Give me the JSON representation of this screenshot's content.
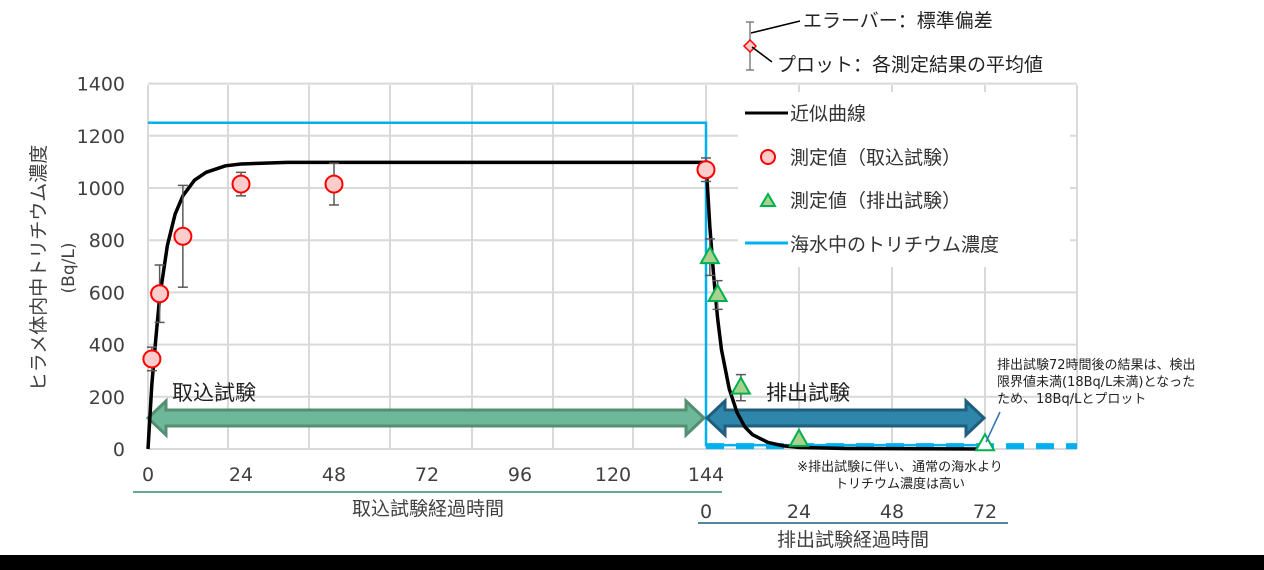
{
  "chart_data": {
    "type": "line",
    "title": "",
    "ylabel": "ヒラメ体内中トリチウム濃度",
    "ylabel_unit": "(Bq/L)",
    "ylim": [
      0,
      1400
    ],
    "yticks": [
      0,
      200,
      400,
      600,
      800,
      1000,
      1200,
      1400
    ],
    "x_axes": [
      {
        "label": "取込試験経過時間",
        "ticks": [
          0,
          24,
          48,
          72,
          96,
          120,
          144
        ],
        "range": [
          0,
          144
        ]
      },
      {
        "label": "排出試験経過時間",
        "ticks": [
          0,
          24,
          48,
          72
        ],
        "range": [
          0,
          72
        ],
        "offset_hours": 144
      }
    ],
    "grid": true,
    "legend_position": "upper right",
    "series": [
      {
        "name": "近似曲線",
        "kind": "line",
        "color": "#000000",
        "x": [
          0,
          1,
          2,
          3,
          5,
          7,
          9,
          12,
          15,
          20,
          24,
          36,
          48,
          96,
          144,
          145,
          146,
          147,
          148,
          150,
          152,
          154,
          156,
          160,
          164,
          168,
          180,
          216
        ],
        "y": [
          0,
          250,
          420,
          580,
          780,
          900,
          970,
          1030,
          1060,
          1085,
          1092,
          1098,
          1098,
          1098,
          1098,
          850,
          660,
          500,
          380,
          230,
          140,
          85,
          55,
          25,
          12,
          6,
          2,
          0
        ]
      },
      {
        "name": "測定値（取込試験）",
        "kind": "scatter",
        "marker": "circle",
        "color": "#ff0000",
        "fill": "#ffcccc",
        "x": [
          1,
          3,
          9,
          24,
          48,
          144
        ],
        "y": [
          345,
          595,
          815,
          1015,
          1015,
          1070
        ],
        "err": [
          45,
          110,
          195,
          45,
          80,
          45
        ]
      },
      {
        "name": "測定値（排出試験）",
        "kind": "scatter",
        "marker": "triangle",
        "color": "#00b050",
        "fill": "#a9d18e",
        "x": [
          145,
          147,
          153,
          168,
          216
        ],
        "y": [
          735,
          590,
          235,
          35,
          18
        ],
        "err": [
          70,
          55,
          50,
          10,
          0
        ]
      },
      {
        "name": "海水中のトリチウム濃度",
        "kind": "step",
        "color": "#00b0f0",
        "x": [
          0,
          144,
          144,
          216
        ],
        "y": [
          1250,
          1250,
          15,
          15
        ]
      }
    ],
    "annotations": [
      {
        "text": "エラーバー：標準偏差"
      },
      {
        "text": "プロット：各測定結果の平均値"
      },
      {
        "text": "取込試験",
        "arrow": "double",
        "color": "#6db89a"
      },
      {
        "text": "排出試験",
        "arrow": "double",
        "color": "#2e86ab"
      },
      {
        "text": "排出試験72時間後の結果は、検出限界値未満(18Bq/L未満)となったため、18Bq/Lとプロット"
      },
      {
        "text": "※排出試験に伴い、通常の海水よりトリチウム濃度は高い"
      }
    ]
  },
  "labels": {
    "y_title": "ヒラメ体内中トリチウム濃度",
    "y_unit": "(Bq/L)",
    "x1_title": "取込試験経過時間",
    "x2_title": "排出試験経過時間",
    "legend": [
      "近似曲線",
      "測定値（取込試験）",
      "測定値（排出試験）",
      "海水中のトリチウム濃度"
    ],
    "key_errorbar": "エラーバー：標準偏差",
    "key_plot": "プロット：各測定結果の平均値",
    "arrow_intake": "取込試験",
    "arrow_excretion": "排出試験",
    "note_detection": [
      "排出試験72時間後の結果は、検出",
      "限界値未満(18Bq/L未満)となった",
      "ため、18Bq/Lとプロット"
    ],
    "note_seawater": [
      "※排出試験に伴い、通常の海水より",
      "トリチウム濃度は高い"
    ]
  }
}
